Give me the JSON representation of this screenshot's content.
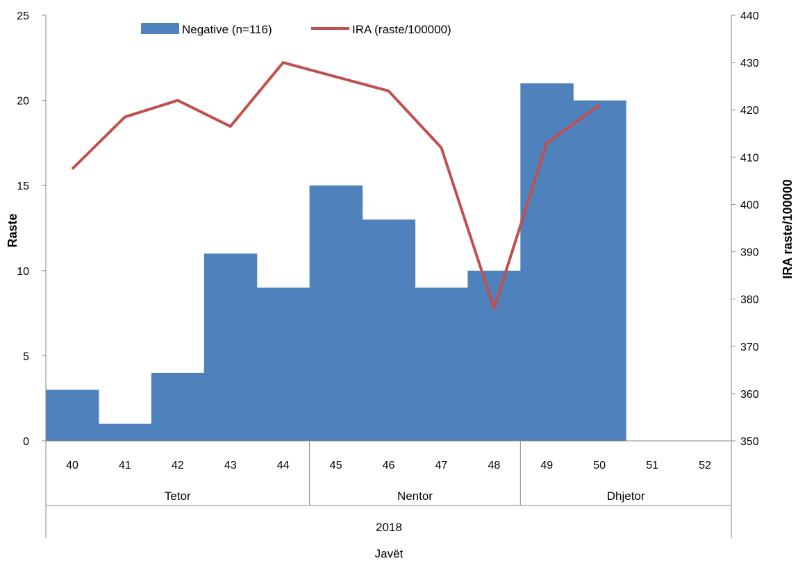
{
  "chart_data": {
    "type": "bar",
    "categories": [
      "40",
      "41",
      "42",
      "43",
      "44",
      "45",
      "46",
      "47",
      "48",
      "49",
      "50",
      "51",
      "52"
    ],
    "groups": [
      {
        "label": "Tetor",
        "from": "40",
        "to": "44"
      },
      {
        "label": "Nentor",
        "from": "45",
        "to": "48"
      },
      {
        "label": "Dhjetor",
        "from": "49",
        "to": "52"
      }
    ],
    "year_label": "2018",
    "xlabel": "Javët",
    "ylabel": "Raste",
    "y2label": "IRA raste/100000",
    "ylim": [
      0,
      25
    ],
    "y_ticks": [
      0,
      5,
      10,
      15,
      20,
      25
    ],
    "y2lim": [
      350,
      440
    ],
    "y2_ticks": [
      350,
      360,
      370,
      380,
      390,
      400,
      410,
      420,
      430,
      440
    ],
    "legend_position": "top",
    "grid": false,
    "series": [
      {
        "name": "Negative (n=116)",
        "type": "bar",
        "axis": "left",
        "color": "#4f81bd",
        "values": [
          3,
          1,
          4,
          11,
          9,
          15,
          13,
          9,
          10,
          21,
          20,
          0,
          0
        ]
      },
      {
        "name": "IRA (raste/100000)",
        "type": "line",
        "axis": "right",
        "color": "#c0504d",
        "values": [
          407.5,
          418.5,
          422,
          416.5,
          430,
          427,
          424,
          412,
          378,
          413,
          421,
          null,
          null
        ]
      }
    ]
  }
}
